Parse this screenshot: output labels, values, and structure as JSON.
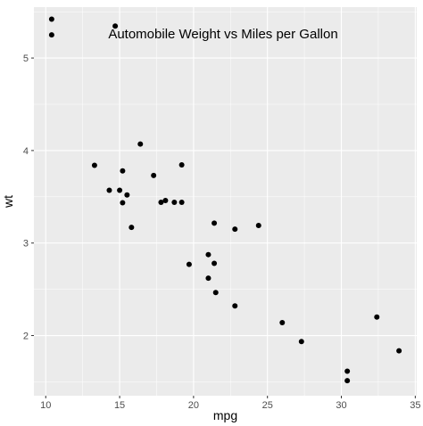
{
  "chart_data": {
    "type": "scatter",
    "title": "Automobile Weight vs Miles per Gallon",
    "xlabel": "mpg",
    "ylabel": "wt",
    "xlim": [
      9.2,
      35.1
    ],
    "ylim": [
      1.35,
      5.55
    ],
    "x_ticks": [
      10,
      15,
      20,
      25,
      30,
      35
    ],
    "y_ticks": [
      2,
      3,
      4,
      5
    ],
    "grid": true,
    "background": "#ebebeb",
    "grid_color": "#ffffff",
    "point_color": "#000000",
    "points": [
      {
        "x": 10.4,
        "y": 5.42
      },
      {
        "x": 10.4,
        "y": 5.25
      },
      {
        "x": 14.7,
        "y": 5.345
      },
      {
        "x": 13.3,
        "y": 3.84
      },
      {
        "x": 14.3,
        "y": 3.57
      },
      {
        "x": 15.0,
        "y": 3.57
      },
      {
        "x": 15.2,
        "y": 3.78
      },
      {
        "x": 15.2,
        "y": 3.435
      },
      {
        "x": 15.5,
        "y": 3.52
      },
      {
        "x": 15.8,
        "y": 3.17
      },
      {
        "x": 16.4,
        "y": 4.07
      },
      {
        "x": 17.3,
        "y": 3.73
      },
      {
        "x": 17.8,
        "y": 3.44
      },
      {
        "x": 18.1,
        "y": 3.46
      },
      {
        "x": 18.7,
        "y": 3.44
      },
      {
        "x": 19.2,
        "y": 3.44
      },
      {
        "x": 19.2,
        "y": 3.845
      },
      {
        "x": 19.7,
        "y": 2.77
      },
      {
        "x": 21.0,
        "y": 2.62
      },
      {
        "x": 21.0,
        "y": 2.875
      },
      {
        "x": 21.4,
        "y": 3.215
      },
      {
        "x": 21.4,
        "y": 2.78
      },
      {
        "x": 21.5,
        "y": 2.465
      },
      {
        "x": 22.8,
        "y": 2.32
      },
      {
        "x": 22.8,
        "y": 3.15
      },
      {
        "x": 24.4,
        "y": 3.19
      },
      {
        "x": 26.0,
        "y": 2.14
      },
      {
        "x": 27.3,
        "y": 1.935
      },
      {
        "x": 30.4,
        "y": 1.615
      },
      {
        "x": 30.4,
        "y": 1.513
      },
      {
        "x": 32.4,
        "y": 2.2
      },
      {
        "x": 33.9,
        "y": 1.835
      }
    ]
  }
}
